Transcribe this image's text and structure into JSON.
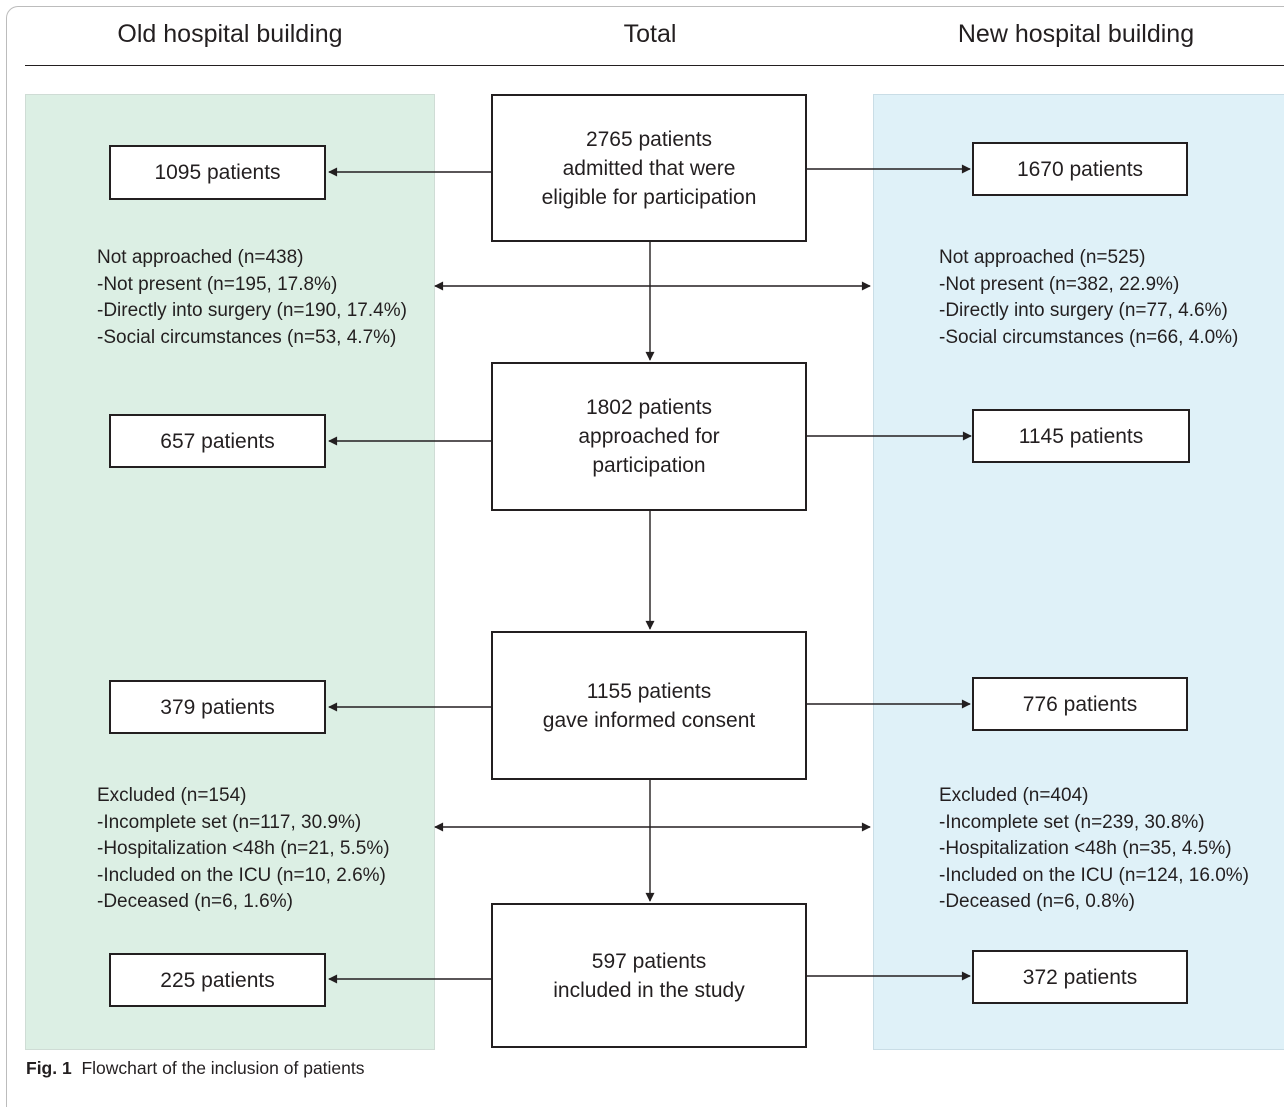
{
  "header": {
    "old_title": "Old hospital building",
    "total_title": "Total",
    "new_title": "New hospital building"
  },
  "center": [
    {
      "lines": [
        "2765 patients",
        "admitted that were",
        "eligible for participation"
      ]
    },
    {
      "lines": [
        "1802 patients",
        "approached for",
        "participation"
      ]
    },
    {
      "lines": [
        "1155 patients",
        "gave informed consent"
      ]
    },
    {
      "lines": [
        "597 patients",
        "included in the study"
      ]
    }
  ],
  "old": {
    "boxes": [
      "1095 patients",
      "657 patients",
      "379 patients",
      "225 patients"
    ],
    "not_approached": [
      "Not approached (n=438)",
      "-Not present (n=195, 17.8%)",
      "-Directly into surgery (n=190, 17.4%)",
      "-Social circumstances (n=53, 4.7%)"
    ],
    "excluded": [
      "Excluded (n=154)",
      "-Incomplete set (n=117, 30.9%)",
      "-Hospitalization <48h (n=21, 5.5%)",
      "-Included on the ICU (n=10, 2.6%)",
      "-Deceased (n=6, 1.6%)"
    ]
  },
  "new": {
    "boxes": [
      "1670 patients",
      "1145 patients",
      "776 patients",
      "372 patients"
    ],
    "not_approached": [
      "Not approached (n=525)",
      "-Not present (n=382, 22.9%)",
      "-Directly into surgery (n=77, 4.6%)",
      "-Social circumstances (n=66, 4.0%)"
    ],
    "excluded": [
      "Excluded (n=404)",
      "-Incomplete set (n=239, 30.8%)",
      "-Hospitalization <48h (n=35, 4.5%)",
      "-Included on the ICU (n=124, 16.0%)",
      "-Deceased (n=6, 0.8%)"
    ]
  },
  "caption": {
    "label": "Fig. 1",
    "text": "Flowchart of the inclusion of patients"
  }
}
